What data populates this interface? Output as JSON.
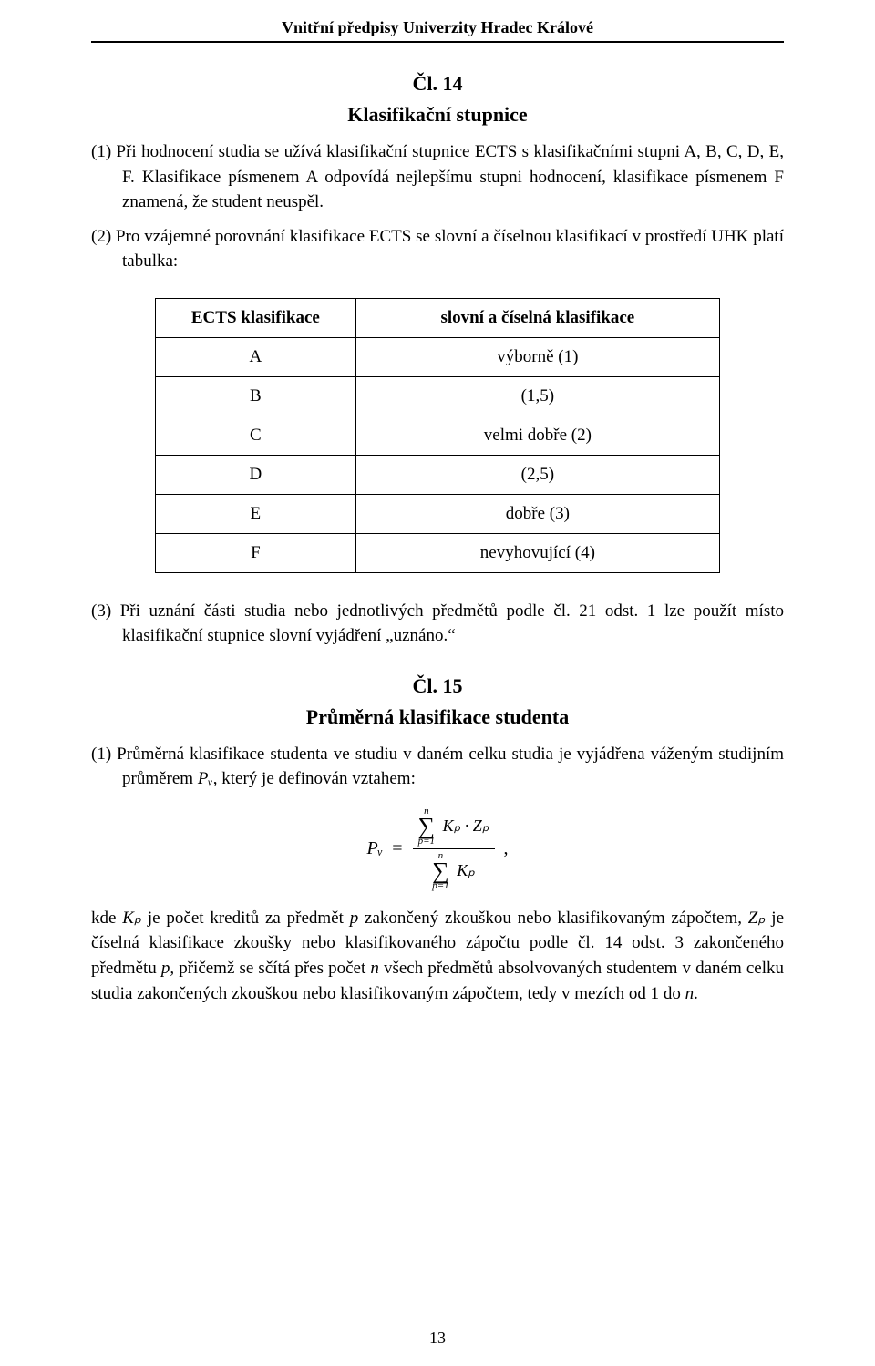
{
  "header": {
    "running_title": "Vnitřní předpisy Univerzity Hradec Králové"
  },
  "article14": {
    "number": "Čl. 14",
    "title": "Klasifikační stupnice",
    "p1": "(1) Při hodnocení studia se užívá klasifikační stupnice ECTS s klasifikačními stupni A, B, C, D, E, F. Klasifikace písmenem A odpovídá nejlepšímu stupni hodnocení, klasifikace písmenem F znamená, že student neuspěl.",
    "p2": "(2) Pro vzájemné porovnání klasifikace ECTS se slovní a číselnou klasifikací v prostředí UHK platí tabulka:",
    "p3": "(3) Při uznání části studia nebo jednotlivých předmětů podle čl. 21 odst. 1 lze použít místo klasifikační stupnice slovní vyjádření „uznáno.“"
  },
  "table": {
    "header_left": "ECTS klasifikace",
    "header_right": "slovní a číselná klasifikace",
    "rows": [
      {
        "l": "A",
        "r": "výborně (1)"
      },
      {
        "l": "B",
        "r": "(1,5)"
      },
      {
        "l": "C",
        "r": "velmi dobře (2)"
      },
      {
        "l": "D",
        "r": "(2,5)"
      },
      {
        "l": "E",
        "r": "dobře (3)"
      },
      {
        "l": "F",
        "r": "nevyhovující (4)"
      }
    ]
  },
  "article15": {
    "number": "Čl. 15",
    "title": "Průměrná klasifikace studenta",
    "p1_prefix": "(1) Průměrná klasifikace studenta ve studiu v daném celku studia je vyjádřena váženým studijním průměrem ",
    "p1_var": "Pᵥ",
    "p1_suffix": ", který je definován vztahem:",
    "formula": {
      "lhs": "Pᵥ",
      "eq": " = ",
      "sum_top": "n",
      "sum_bot": "p=1",
      "num_term": "Kₚ · Zₚ",
      "den_term": "Kₚ",
      "comma": " ,"
    },
    "p_after_a": "kde ",
    "p_after_kp": "Kₚ",
    "p_after_b": " je počet kreditů za předmět ",
    "p_after_p": "p",
    "p_after_c": " zakončený zkouškou nebo klasifikovaným zápočtem, ",
    "p_after_zp": "Zₚ",
    "p_after_d": " je číselná klasifikace zkoušky nebo klasifikovaného zápočtu podle čl. 14 odst. 3 zakončeného předmětu ",
    "p_after_p2": "p,",
    "p_after_e": " přičemž se sčítá přes počet ",
    "p_after_n": "n",
    "p_after_f": " všech předmětů absolvovaných studentem v daném celku studia zakončených zkouškou nebo klasifikovaným zápočtem, tedy v mezích od 1 do ",
    "p_after_n2": "n",
    "p_after_g": "."
  },
  "page_number": "13",
  "colors": {
    "text": "#000000",
    "border": "#000000",
    "background": "#ffffff"
  }
}
